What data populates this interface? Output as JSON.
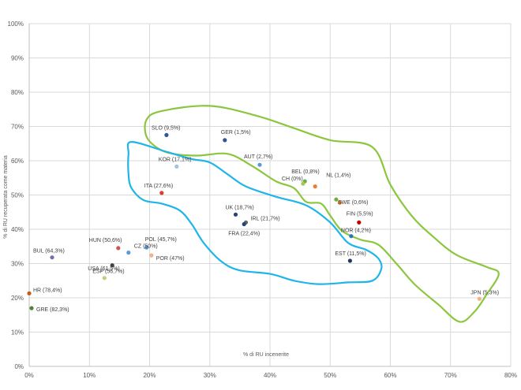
{
  "chart_data": {
    "type": "scatter",
    "title": "",
    "xlabel": "% di RU incenerite",
    "ylabel": "% di RU recuperata come materia",
    "xlim": [
      0,
      80
    ],
    "ylim": [
      0,
      100
    ],
    "x_ticks": [
      "0%",
      "10%",
      "20%",
      "30%",
      "40%",
      "50%",
      "60%",
      "70%",
      "80%"
    ],
    "y_ticks": [
      "0%",
      "10%",
      "20%",
      "30%",
      "40%",
      "50%",
      "60%",
      "70%",
      "80%",
      "90%",
      "100%"
    ],
    "grid": true,
    "points": [
      {
        "label": "SLO (9,5%)",
        "x": 22.8,
        "y": 67.5,
        "color": "#2e5597"
      },
      {
        "label": "GER (1,5%)",
        "x": 32.5,
        "y": 66.0,
        "color": "#2e5597"
      },
      {
        "label": "AUT (2,7%)",
        "x": 38.3,
        "y": 58.8,
        "color": "#5b9bd5"
      },
      {
        "label": "BEL (0,8%)",
        "x": 45.8,
        "y": 54.0,
        "color": "#70ad47"
      },
      {
        "label": "CH (0%)",
        "x": 45.5,
        "y": 53.3,
        "color": "#a5c85a"
      },
      {
        "label": "NL (1,4%)",
        "x": 47.5,
        "y": 52.5,
        "color": "#ed7d31"
      },
      {
        "label": "SWE (0,6%)",
        "x": 51.0,
        "y": 48.7,
        "color": "#70ad47"
      },
      {
        "label": "",
        "x": 51.6,
        "y": 47.8,
        "color": "#ed7d31"
      },
      {
        "label": "KOR (17,1%)",
        "x": 24.5,
        "y": 58.3,
        "color": "#9dc3e6"
      },
      {
        "label": "ITA (27,6%)",
        "x": 22.0,
        "y": 50.6,
        "color": "#e03c31"
      },
      {
        "label": "UK (18,7%)",
        "x": 34.3,
        "y": 44.3,
        "color": "#264478"
      },
      {
        "label": "IRL (21,7%)",
        "x": 36.0,
        "y": 42.0,
        "color": "#636363"
      },
      {
        "label": "FRA (22,4%)",
        "x": 35.7,
        "y": 41.5,
        "color": "#264478"
      },
      {
        "label": "FIN (5,5%)",
        "x": 54.8,
        "y": 42.0,
        "color": "#c00000"
      },
      {
        "label": "NOR (4,2%)",
        "x": 53.5,
        "y": 38.0,
        "color": "#2e75b6"
      },
      {
        "label": "EST (11,5%)",
        "x": 53.3,
        "y": 30.8,
        "color": "#203864"
      },
      {
        "label": "JPN (5,3%)",
        "x": 74.8,
        "y": 19.7,
        "color": "#f4b183"
      },
      {
        "label": "HUN (50,6%)",
        "x": 14.8,
        "y": 34.5,
        "color": "#c55a5a"
      },
      {
        "label": "POL (45,7%)",
        "x": 19.5,
        "y": 34.7,
        "color": "#5b9bd5"
      },
      {
        "label": "CZ (50%)",
        "x": 16.5,
        "y": 33.2,
        "color": "#5b9bd5"
      },
      {
        "label": "ESP (56,7%)",
        "x": 13.8,
        "y": 29.5,
        "color": "#404040"
      },
      {
        "label": "POR (47%)",
        "x": 20.3,
        "y": 32.4,
        "color": "#f4b183"
      },
      {
        "label": "USA (61,5%)",
        "x": 12.5,
        "y": 25.8,
        "color": "#c9c97a"
      },
      {
        "label": "BUL (64,3%)",
        "x": 3.8,
        "y": 31.8,
        "color": "#7f6aa8"
      },
      {
        "label": "HR (78,4%)",
        "x": 0.0,
        "y": 21.3,
        "color": "#c55a11"
      },
      {
        "label": "GRE (82,3%)",
        "x": 0.4,
        "y": 17.0,
        "color": "#548235"
      }
    ],
    "regions": [
      {
        "color": "#8cc63f",
        "points": [
          [
            19.5,
            72
          ],
          [
            22,
            74.5
          ],
          [
            30,
            76
          ],
          [
            38,
            73
          ],
          [
            44,
            69.5
          ],
          [
            50,
            66
          ],
          [
            57,
            64
          ],
          [
            60,
            53
          ],
          [
            63.5,
            44
          ],
          [
            67,
            38
          ],
          [
            71,
            32.5
          ],
          [
            76,
            29
          ],
          [
            78,
            27
          ],
          [
            76,
            21
          ],
          [
            74,
            16
          ],
          [
            71.5,
            13
          ],
          [
            68,
            18
          ],
          [
            64,
            24
          ],
          [
            61,
            30
          ],
          [
            58,
            35.5
          ],
          [
            55,
            37
          ],
          [
            52,
            39.5
          ],
          [
            50,
            44
          ],
          [
            48.5,
            47.5
          ],
          [
            46,
            48
          ],
          [
            44,
            52
          ],
          [
            41,
            54
          ],
          [
            37,
            58.5
          ],
          [
            33,
            62
          ],
          [
            28,
            61.5
          ],
          [
            24,
            62
          ],
          [
            21.5,
            63.5
          ],
          [
            19.5,
            67
          ],
          [
            19.5,
            72
          ]
        ]
      },
      {
        "color": "#1fb5e8",
        "points": [
          [
            17,
            65.5
          ],
          [
            23,
            62.5
          ],
          [
            27,
            60.5
          ],
          [
            30,
            59.5
          ],
          [
            33,
            56
          ],
          [
            36,
            52.5
          ],
          [
            41,
            49.5
          ],
          [
            46,
            47
          ],
          [
            50,
            42
          ],
          [
            53,
            36
          ],
          [
            56,
            34
          ],
          [
            58,
            31.5
          ],
          [
            58.5,
            28.5
          ],
          [
            57,
            25
          ],
          [
            53,
            24.5
          ],
          [
            48,
            24
          ],
          [
            44,
            25
          ],
          [
            40,
            27
          ],
          [
            35,
            28
          ],
          [
            32,
            30.5
          ],
          [
            29,
            36
          ],
          [
            27,
            41.5
          ],
          [
            25,
            45.5
          ],
          [
            22,
            47.5
          ],
          [
            19,
            48.5
          ],
          [
            17,
            52
          ],
          [
            16.5,
            56
          ],
          [
            16.5,
            62
          ],
          [
            17,
            65.5
          ]
        ]
      }
    ]
  }
}
